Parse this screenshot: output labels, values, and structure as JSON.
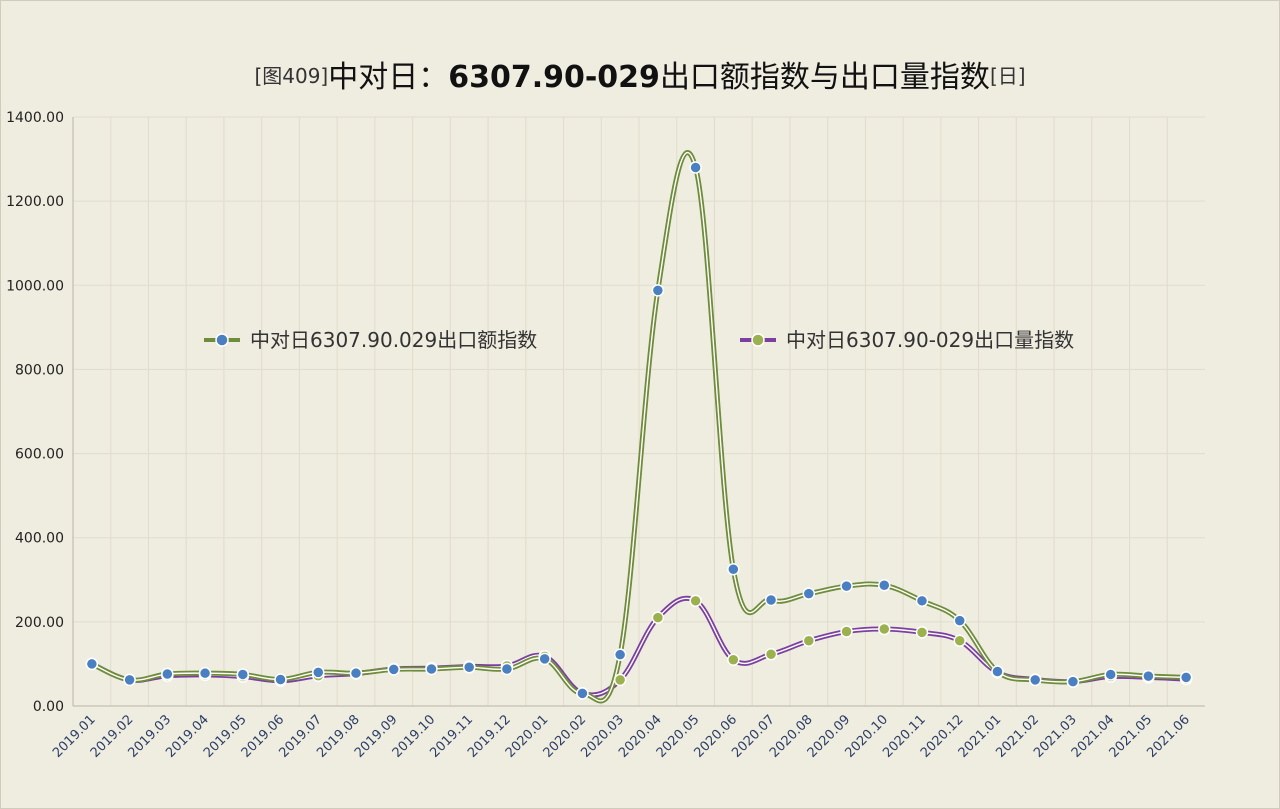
{
  "title": {
    "prefix": "[图409]",
    "main": "中对日：",
    "code": "6307.90-029",
    "suffix": "出口额指数与出口量指数",
    "tag": "[日]"
  },
  "colors": {
    "background": "#efece0",
    "grid": "#e0dccd",
    "series_a_line": "#6f8c3a",
    "series_a_marker": "#4a7fc1",
    "series_b_line": "#7b3fa0",
    "series_b_marker": "#9bb14e"
  },
  "chart_data": {
    "type": "line",
    "x": [
      "2019.01",
      "2019.02",
      "2019.03",
      "2019.04",
      "2019.05",
      "2019.06",
      "2019.07",
      "2019.08",
      "2019.09",
      "2019.10",
      "2019.11",
      "2019.12",
      "2020.01",
      "2020.02",
      "2020.03",
      "2020.04",
      "2020.05",
      "2020.06",
      "2020.07",
      "2020.08",
      "2020.09",
      "2020.10",
      "2020.11",
      "2020.12",
      "2021.01",
      "2021.02",
      "2021.03",
      "2021.04",
      "2021.05",
      "2021.06"
    ],
    "ylim": [
      0,
      1400
    ],
    "yticks": [
      "0.00",
      "200.00",
      "400.00",
      "600.00",
      "800.00",
      "1000.00",
      "1200.00",
      "1400.00"
    ],
    "grid": true,
    "legend_position": "middle",
    "series": [
      {
        "name": "中对日6307.90.029出口额指数",
        "values": [
          100,
          62,
          76,
          78,
          75,
          63,
          80,
          78,
          87,
          88,
          92,
          88,
          112,
          30,
          122,
          988,
          1280,
          325,
          252,
          267,
          285,
          287,
          250,
          203,
          82,
          62,
          58,
          75,
          71,
          68
        ]
      },
      {
        "name": "中对日6307.90-029出口量指数",
        "values": [
          100,
          62,
          72,
          74,
          70,
          60,
          72,
          77,
          88,
          90,
          94,
          95,
          118,
          30,
          62,
          210,
          250,
          110,
          123,
          155,
          177,
          183,
          175,
          155,
          80,
          63,
          58,
          70,
          68,
          64
        ]
      }
    ]
  }
}
